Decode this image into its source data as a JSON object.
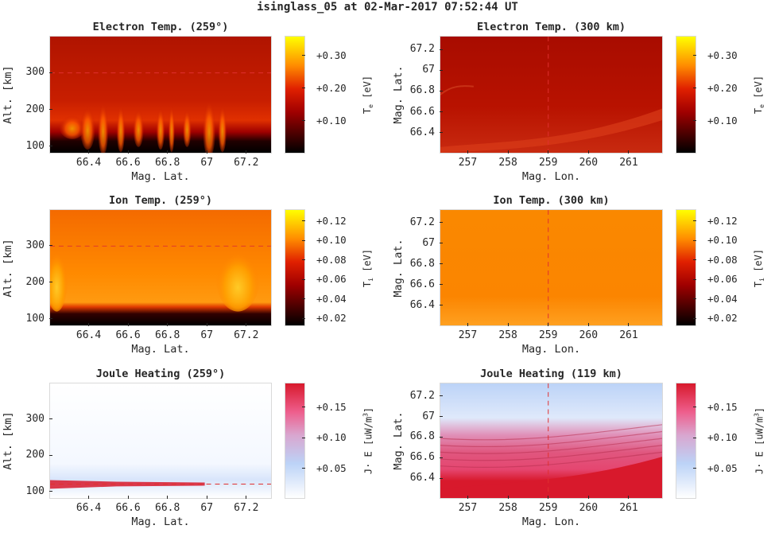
{
  "suptitle": "isinglass_05 at 02-Mar-2017 07:52:44 UT",
  "chart_data": [
    {
      "type": "heatmap",
      "title": "Electron Temp. (259°)",
      "xlabel": "Mag. Lat.",
      "ylabel": "Alt. [km]",
      "xlim": [
        66.2,
        67.33
      ],
      "ylim": [
        80,
        400
      ],
      "xticks": [
        "66.4",
        "66.6",
        "66.8",
        "67",
        "67.2"
      ],
      "yticks": [
        "100",
        "200",
        "300"
      ],
      "cut_line": {
        "axis": "y",
        "value": 300
      },
      "colormap": "hot",
      "colorbar": {
        "label_main": "T",
        "label_sub": "e",
        "label_unit": " [eV]",
        "ticks": [
          "+0.10",
          "+0.20",
          "+0.30"
        ],
        "range": [
          0.0,
          0.36
        ]
      }
    },
    {
      "type": "heatmap",
      "title": "Electron Temp. (300 km)",
      "xlabel": "Mag. Lon.",
      "ylabel": "Mag. Lat.",
      "xlim": [
        256.3,
        261.85
      ],
      "ylim": [
        66.2,
        67.33
      ],
      "xticks": [
        "257",
        "258",
        "259",
        "260",
        "261"
      ],
      "yticks": [
        "66.4",
        "66.6",
        "66.8",
        "67",
        "67.2"
      ],
      "cut_line": {
        "axis": "x",
        "value": 259
      },
      "colormap": "hot",
      "colorbar": {
        "label_main": "T",
        "label_sub": "e",
        "label_unit": " [eV]",
        "ticks": [
          "+0.10",
          "+0.20",
          "+0.30"
        ],
        "range": [
          0.0,
          0.36
        ]
      }
    },
    {
      "type": "heatmap",
      "title": "Ion Temp. (259°)",
      "xlabel": "Mag. Lat.",
      "ylabel": "Alt. [km]",
      "xlim": [
        66.2,
        67.33
      ],
      "ylim": [
        80,
        400
      ],
      "xticks": [
        "66.4",
        "66.6",
        "66.8",
        "67",
        "67.2"
      ],
      "yticks": [
        "100",
        "200",
        "300"
      ],
      "cut_line": {
        "axis": "y",
        "value": 300
      },
      "colormap": "hot",
      "colorbar": {
        "label_main": "T",
        "label_sub": "i",
        "label_unit": " [eV]",
        "ticks": [
          "+0.02",
          "+0.04",
          "+0.06",
          "+0.08",
          "+0.10",
          "+0.12"
        ],
        "range": [
          0.012,
          0.132
        ]
      }
    },
    {
      "type": "heatmap",
      "title": "Ion Temp. (300 km)",
      "xlabel": "Mag. Lon.",
      "ylabel": "Mag. Lat.",
      "xlim": [
        256.3,
        261.85
      ],
      "ylim": [
        66.2,
        67.33
      ],
      "xticks": [
        "257",
        "258",
        "259",
        "260",
        "261"
      ],
      "yticks": [
        "66.4",
        "66.6",
        "66.8",
        "67",
        "67.2"
      ],
      "cut_line": {
        "axis": "x",
        "value": 259
      },
      "colormap": "hot",
      "colorbar": {
        "label_main": "T",
        "label_sub": "i",
        "label_unit": " [eV]",
        "ticks": [
          "+0.02",
          "+0.04",
          "+0.06",
          "+0.08",
          "+0.10",
          "+0.12"
        ],
        "range": [
          0.012,
          0.132
        ]
      }
    },
    {
      "type": "heatmap",
      "title": "Joule Heating (259°)",
      "xlabel": "Mag. Lat.",
      "ylabel": "Alt. [km]",
      "xlim": [
        66.2,
        67.33
      ],
      "ylim": [
        80,
        400
      ],
      "xticks": [
        "66.4",
        "66.6",
        "66.8",
        "67",
        "67.2"
      ],
      "yticks": [
        "100",
        "200",
        "300"
      ],
      "cut_line": {
        "axis": "y",
        "value": 119
      },
      "colormap": "white-blue-pink-red",
      "colorbar": {
        "label_main": "J· E [uW/m",
        "label_sub": "",
        "label_unit": "]",
        "label_sup": "3",
        "ticks": [
          "+0.05",
          "+0.10",
          "+0.15"
        ],
        "range": [
          0.0,
          0.19
        ]
      }
    },
    {
      "type": "heatmap",
      "title": "Joule Heating (119 km)",
      "xlabel": "Mag. Lon.",
      "ylabel": "Mag. Lat.",
      "xlim": [
        256.3,
        261.85
      ],
      "ylim": [
        66.2,
        67.33
      ],
      "xticks": [
        "257",
        "258",
        "259",
        "260",
        "261"
      ],
      "yticks": [
        "66.4",
        "66.6",
        "66.8",
        "67",
        "67.2"
      ],
      "cut_line": {
        "axis": "x",
        "value": 259
      },
      "colormap": "white-blue-pink-red",
      "colorbar": {
        "label_main": "J· E [uW/m",
        "label_sub": "",
        "label_unit": "]",
        "label_sup": "3",
        "ticks": [
          "+0.05",
          "+0.10",
          "+0.15"
        ],
        "range": [
          0.0,
          0.19
        ]
      }
    }
  ]
}
